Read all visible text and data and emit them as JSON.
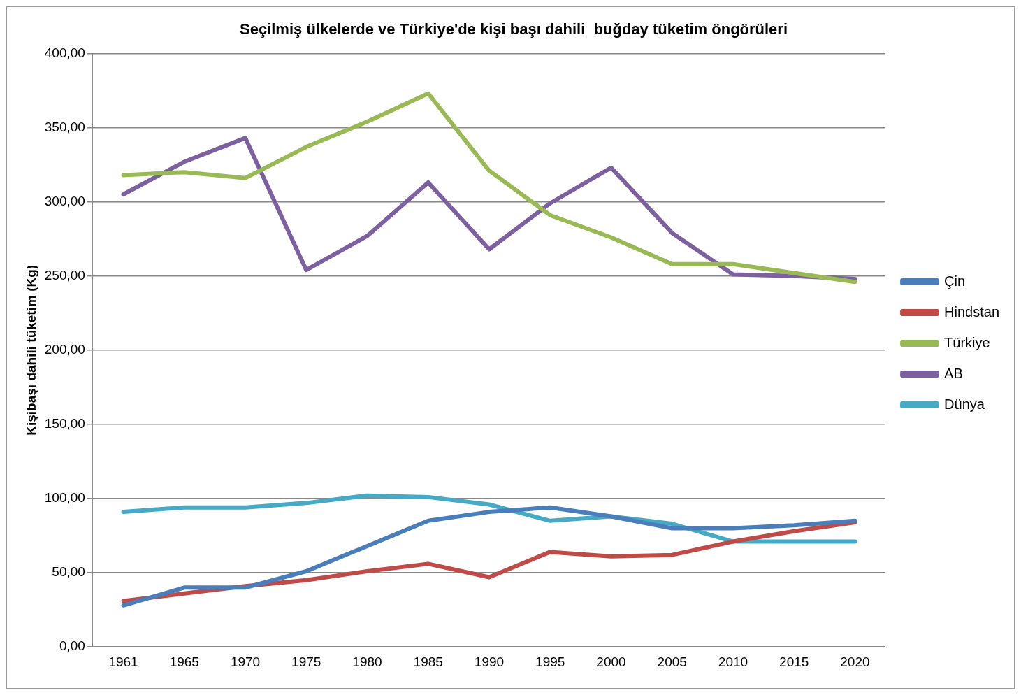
{
  "chart_data": {
    "type": "line",
    "title": "Seçilmiş ülkelerde ve Türkiye'de kişi başı dahili  buğday tüketim öngörüleri",
    "ylabel": "Kişibaşı dahili tüketim (Kg)",
    "categories": [
      "1961",
      "1965",
      "1970",
      "1975",
      "1980",
      "1985",
      "1990",
      "1995",
      "2000",
      "2005",
      "2010",
      "2015",
      "2020"
    ],
    "series": [
      {
        "name": "Çin",
        "color": "#4a7ebb",
        "values": [
          28,
          40,
          40,
          51,
          68,
          85,
          91,
          94,
          88,
          80,
          80,
          82,
          85
        ]
      },
      {
        "name": "Hindstan",
        "color": "#be4b48",
        "values": [
          31,
          36,
          41,
          45,
          51,
          56,
          47,
          64,
          61,
          62,
          71,
          78,
          84
        ]
      },
      {
        "name": "Türkiye",
        "color": "#98b954",
        "values": [
          318,
          320,
          316,
          337,
          354,
          373,
          321,
          291,
          276,
          258,
          258,
          252,
          246
        ]
      },
      {
        "name": "AB",
        "color": "#7d60a0",
        "values": [
          305,
          327,
          343,
          254,
          277,
          313,
          268,
          299,
          323,
          279,
          251,
          250,
          248
        ]
      },
      {
        "name": "Dünya",
        "color": "#46aac5",
        "values": [
          91,
          94,
          94,
          97,
          102,
          101,
          96,
          85,
          88,
          83,
          71,
          71,
          71
        ]
      }
    ],
    "ylim": [
      0,
      400
    ],
    "yticks": [
      {
        "value": 0,
        "label": "0,00"
      },
      {
        "value": 50,
        "label": "50,00"
      },
      {
        "value": 100,
        "label": "100,00"
      },
      {
        "value": 150,
        "label": "150,00"
      },
      {
        "value": 200,
        "label": "200,00"
      },
      {
        "value": 250,
        "label": "250,00"
      },
      {
        "value": 300,
        "label": "300,00"
      },
      {
        "value": 350,
        "label": "350,00"
      },
      {
        "value": 400,
        "label": "400,00"
      }
    ],
    "grid": "y",
    "legend": "right",
    "marker": "none",
    "line_style": "solid"
  }
}
